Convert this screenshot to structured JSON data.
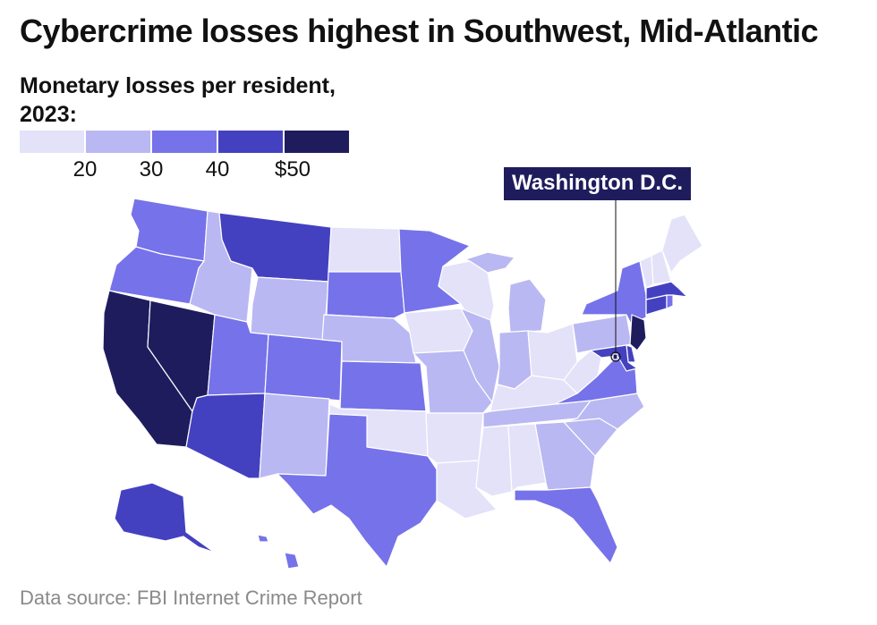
{
  "title": "Cybercrime losses highest in Southwest, Mid-Atlantic",
  "legend": {
    "title": "Monetary losses per resident, 2023:",
    "colors": [
      "#e3e2f9",
      "#bab8f2",
      "#7572ea",
      "#4441c0",
      "#1f1c5e"
    ],
    "ticks": [
      "20",
      "30",
      "40",
      "$50"
    ],
    "thresholds": [
      20,
      30,
      40,
      50
    ]
  },
  "callout": {
    "label": "Washington D.C.",
    "state": "DC",
    "bin": 4
  },
  "source": "Data source: FBI Internet Crime Report",
  "state_bins": {
    "WA": 2,
    "OR": 2,
    "CA": 4,
    "NV": 4,
    "ID": 1,
    "MT": 3,
    "WY": 1,
    "UT": 2,
    "AZ": 3,
    "CO": 2,
    "NM": 1,
    "ND": 0,
    "SD": 2,
    "NE": 1,
    "KS": 2,
    "OK": 0,
    "TX": 2,
    "MN": 2,
    "IA": 0,
    "MO": 1,
    "AR": 0,
    "LA": 0,
    "WI": 0,
    "IL": 1,
    "MI": 1,
    "IN": 1,
    "OH": 0,
    "KY": 0,
    "TN": 1,
    "MS": 0,
    "AL": 0,
    "GA": 1,
    "FL": 2,
    "SC": 1,
    "NC": 1,
    "VA": 2,
    "WV": 0,
    "PA": 1,
    "NY": 2,
    "NJ": 4,
    "DE": 3,
    "MD": 3,
    "DC": 4,
    "CT": 3,
    "RI": 2,
    "MA": 3,
    "VT": 0,
    "NH": 0,
    "ME": 0,
    "AK": 3,
    "HI": 2
  }
}
